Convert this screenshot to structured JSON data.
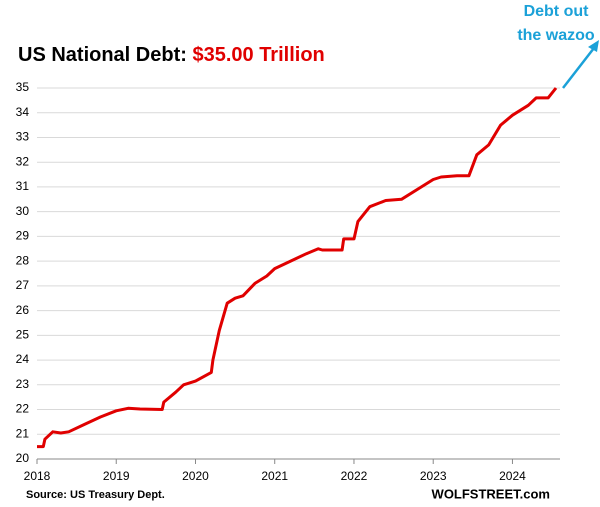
{
  "chart_data": {
    "type": "line",
    "title": "US National Debt:",
    "title_highlight": "$35.00 Trillion",
    "annotation": [
      "Debt out",
      "the wazoo"
    ],
    "source": "Source: US Treasury Dept.",
    "credit": "WOLFSTREET.com",
    "color": "#e00000",
    "x": [
      2018.0,
      2018.08,
      2018.1,
      2018.2,
      2018.3,
      2018.4,
      2018.6,
      2018.8,
      2019.0,
      2019.15,
      2019.3,
      2019.58,
      2019.6,
      2019.75,
      2019.85,
      2020.0,
      2020.2,
      2020.22,
      2020.3,
      2020.4,
      2020.5,
      2020.6,
      2020.75,
      2020.9,
      2021.0,
      2021.2,
      2021.4,
      2021.55,
      2021.6,
      2021.85,
      2021.87,
      2022.0,
      2022.05,
      2022.2,
      2022.4,
      2022.6,
      2022.8,
      2023.0,
      2023.1,
      2023.3,
      2023.45,
      2023.55,
      2023.7,
      2023.85,
      2024.0,
      2024.2,
      2024.3,
      2024.45,
      2024.55
    ],
    "values": [
      20.5,
      20.5,
      20.8,
      21.1,
      21.05,
      21.1,
      21.4,
      21.7,
      21.95,
      22.05,
      22.02,
      22.0,
      22.3,
      22.7,
      23.0,
      23.15,
      23.5,
      24.0,
      25.2,
      26.3,
      26.5,
      26.6,
      27.1,
      27.4,
      27.7,
      28.0,
      28.3,
      28.5,
      28.45,
      28.45,
      28.9,
      28.9,
      29.6,
      30.2,
      30.45,
      30.5,
      30.9,
      31.3,
      31.4,
      31.45,
      31.45,
      32.3,
      32.7,
      33.5,
      33.9,
      34.3,
      34.6,
      34.6,
      35.0
    ],
    "xlim": [
      2018,
      2024.6
    ],
    "xticks": [
      2018,
      2019,
      2020,
      2021,
      2022,
      2023,
      2024
    ],
    "ylim": [
      20,
      35
    ],
    "yticks": [
      20,
      21,
      22,
      23,
      24,
      25,
      26,
      27,
      28,
      29,
      30,
      31,
      32,
      33,
      34,
      35
    ],
    "grid": true
  }
}
